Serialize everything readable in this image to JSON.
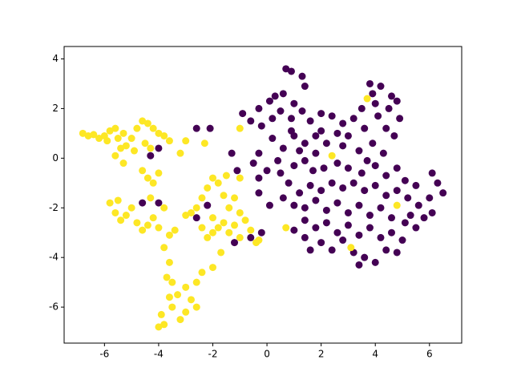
{
  "chart_data": {
    "type": "scatter",
    "xlim": [
      -7.49,
      7.19
    ],
    "ylim": [
      -7.45,
      4.5
    ],
    "xticks": [
      -6,
      -4,
      -2,
      0,
      2,
      4,
      6
    ],
    "yticks": [
      -6,
      -4,
      -2,
      0,
      2,
      4
    ],
    "series": [
      {
        "color": "#440154",
        "x": [
          -4.6,
          -4.0,
          -4.3,
          -4.0,
          -2.6,
          -2.1,
          -2.6,
          -2.2,
          -1.2,
          -1.1,
          -1.3,
          0.7,
          0.9,
          1.3,
          1.4,
          0.3,
          0.6,
          1.0,
          0.1,
          -0.3,
          -0.9,
          -0.6,
          -0.2,
          0.2,
          0.5,
          0.9,
          1.3,
          1.6,
          2.0,
          2.4,
          2.8,
          3.2,
          3.5,
          3.8,
          3.9,
          4.2,
          4.6,
          4.5,
          4.1,
          4.9,
          4.7,
          3.6,
          3.9,
          4.3,
          3.4,
          3.0,
          2.6,
          2.2,
          1.8,
          1.4,
          1.0,
          0.6,
          0.2,
          -0.3,
          -0.5,
          0.0,
          0.5,
          1.0,
          1.4,
          1.8,
          2.1,
          2.6,
          3.0,
          3.5,
          4.0,
          4.4,
          4.8,
          5.1,
          5.5,
          6.1,
          6.3,
          6.5,
          6.0,
          5.6,
          5.3,
          5.8,
          6.1,
          5.5,
          5.1,
          -0.3,
          0.8,
          1.2,
          1.6,
          2.0,
          2.4,
          2.8,
          3.2,
          3.6,
          4.0,
          4.4,
          4.8,
          0.6,
          1.0,
          1.4,
          1.8,
          2.2,
          2.6,
          3.0,
          3.4,
          3.8,
          4.2,
          4.6,
          1.4,
          1.8,
          2.2,
          2.6,
          3.0,
          3.4,
          3.8,
          4.2,
          4.6,
          5.0,
          1.4,
          1.6,
          2.0,
          2.4,
          2.8,
          3.2,
          3.6,
          4.0,
          4.4,
          4.8,
          3.4,
          -0.2,
          -0.6,
          1.0,
          0.1,
          -0.3,
          0.4,
          1.2,
          2.8,
          3.7,
          5.2,
          4.4,
          2.0,
          0.9,
          4.0,
          4.8,
          1.7
        ],
        "y": [
          -1.8,
          0.4,
          0.1,
          -1.8,
          1.2,
          1.2,
          -2.4,
          -1.9,
          -3.4,
          -0.5,
          0.2,
          3.6,
          3.5,
          3.3,
          2.9,
          2.5,
          2.6,
          2.2,
          2.3,
          2.0,
          1.8,
          1.5,
          1.3,
          1.6,
          1.9,
          1.6,
          1.9,
          1.5,
          1.8,
          1.7,
          1.4,
          1.6,
          2.0,
          3.0,
          2.6,
          2.9,
          2.5,
          2.0,
          1.7,
          1.6,
          0.9,
          1.2,
          0.6,
          0.2,
          0.3,
          0.9,
          1.0,
          0.6,
          0.9,
          0.6,
          0.9,
          0.4,
          0.8,
          0.2,
          -0.2,
          -0.5,
          -0.6,
          -0.3,
          -0.1,
          0.2,
          -0.4,
          -0.2,
          -0.4,
          -0.6,
          -0.3,
          -0.7,
          -0.4,
          -0.9,
          -1.1,
          -0.6,
          -1.0,
          -1.4,
          -1.6,
          -1.9,
          -2.3,
          -2.4,
          -2.2,
          -2.8,
          -2.6,
          -0.8,
          -1.0,
          -1.4,
          -1.1,
          -1.3,
          -1.0,
          -1.2,
          -1.0,
          -1.3,
          -1.1,
          -1.5,
          -1.3,
          -1.6,
          -1.9,
          -2.0,
          -1.7,
          -2.1,
          -1.8,
          -2.2,
          -1.9,
          -2.3,
          -2.0,
          -2.4,
          -2.5,
          -2.8,
          -2.6,
          -3.0,
          -2.7,
          -3.1,
          -2.8,
          -3.2,
          -3.0,
          -3.3,
          -3.2,
          -3.7,
          -3.4,
          -3.7,
          -3.3,
          -3.8,
          -4.0,
          -4.2,
          -3.7,
          -3.8,
          -4.3,
          -3.0,
          -3.2,
          -2.9,
          -1.9,
          -1.4,
          -0.1,
          0.3,
          0.5,
          -0.1,
          -1.6,
          1.2,
          1.1,
          1.1,
          2.2,
          2.3,
          -0.5
        ]
      },
      {
        "color": "#fde725",
        "x": [
          -6.8,
          -6.6,
          -6.4,
          -6.2,
          -6.0,
          -5.8,
          -5.6,
          -5.9,
          -5.5,
          -5.3,
          -5.4,
          -5.2,
          -5.0,
          -4.8,
          -4.6,
          -4.4,
          -4.2,
          -4.0,
          -3.8,
          -3.6,
          -4.9,
          -4.5,
          -4.3,
          -5.6,
          -5.3,
          -4.6,
          -4.4,
          -4.2,
          -4.0,
          -3.0,
          -3.2,
          -2.3,
          -1.0,
          -5.8,
          -5.6,
          -5.4,
          -5.2,
          -5.0,
          -4.8,
          -4.6,
          -4.4,
          -4.2,
          -4.0,
          -3.8,
          -5.5,
          -4.3,
          -3.6,
          -3.4,
          -3.0,
          -2.8,
          -2.2,
          -2.0,
          -1.8,
          -1.6,
          -1.4,
          -1.2,
          -1.0,
          -2.4,
          -2.6,
          -2.0,
          -1.8,
          -1.6,
          -1.4,
          -1.2,
          -0.8,
          -0.6,
          -2.2,
          -2.0,
          -1.0,
          -0.4,
          -1.7,
          -2.4,
          -1.5,
          -1.0,
          -3.8,
          -3.6,
          -3.7,
          -3.5,
          -3.6,
          -3.5,
          -3.3,
          -3.0,
          -3.0,
          -2.8,
          -2.6,
          -2.4,
          -2.0,
          -3.2,
          -3.8,
          -4.0,
          -3.9,
          -2.6,
          3.7,
          2.4,
          3.1,
          4.8,
          0.7,
          -0.3
        ],
        "y": [
          1.0,
          0.9,
          0.95,
          0.8,
          0.9,
          1.1,
          1.2,
          0.7,
          0.8,
          1.0,
          0.4,
          0.5,
          0.8,
          1.2,
          1.5,
          1.4,
          1.2,
          1.0,
          0.9,
          0.7,
          0.3,
          0.6,
          0.4,
          0.1,
          -0.2,
          -0.5,
          -0.8,
          -1.0,
          -0.6,
          0.7,
          0.2,
          0.6,
          1.2,
          -1.8,
          -2.2,
          -2.5,
          -2.3,
          -2.0,
          -2.6,
          -2.9,
          -2.7,
          -2.4,
          -2.8,
          -2.0,
          -1.7,
          -1.6,
          -3.1,
          -2.9,
          -2.3,
          -2.2,
          -1.2,
          -0.8,
          -1.0,
          -1.5,
          -2.0,
          -1.6,
          -2.2,
          -1.6,
          -2.0,
          -2.4,
          -2.8,
          -2.6,
          -3.0,
          -2.7,
          -2.5,
          -2.9,
          -3.2,
          -3.0,
          -3.2,
          -3.4,
          -3.8,
          -2.8,
          -0.7,
          -0.8,
          -3.6,
          -4.2,
          -4.8,
          -5.0,
          -5.6,
          -6.0,
          -5.5,
          -5.2,
          -6.2,
          -5.7,
          -5.0,
          -4.6,
          -4.4,
          -6.5,
          -6.7,
          -6.8,
          -6.3,
          -6.0,
          2.4,
          0.1,
          -3.6,
          -1.9,
          -2.8,
          -3.3
        ]
      }
    ]
  }
}
